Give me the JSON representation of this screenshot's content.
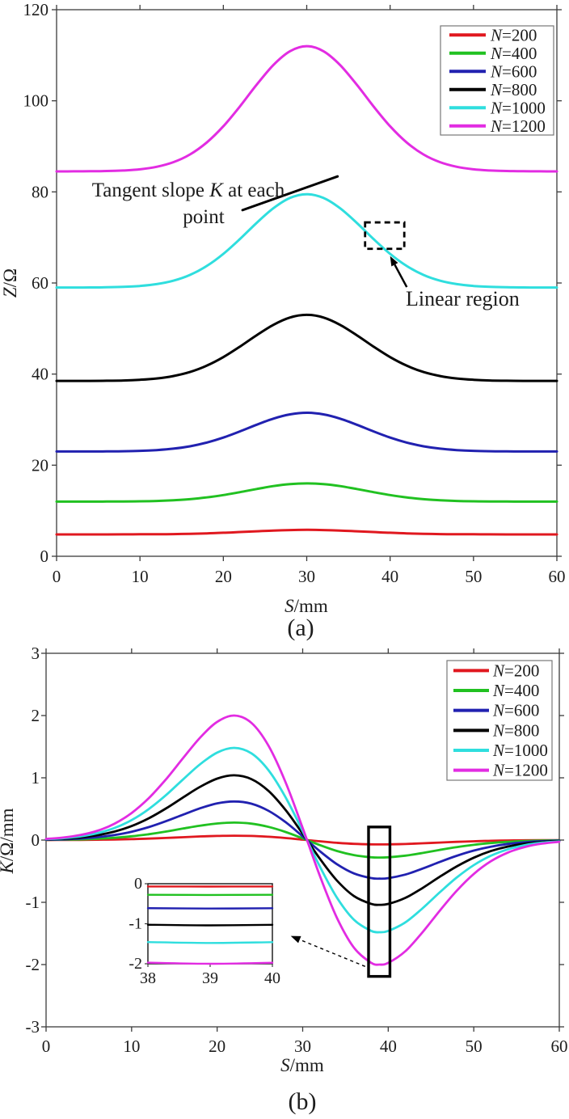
{
  "figure": {
    "caption_a": "(a)",
    "caption_b": "(b)"
  },
  "chart_data": [
    {
      "id": "a",
      "type": "line",
      "xlabel": "S/mm",
      "xlabel_var": "S",
      "xlabel_unit": "/mm",
      "ylabel": "Z/Ω",
      "ylabel_var": "Z",
      "ylabel_unit": "/Ω",
      "xlim": [
        0,
        60
      ],
      "ylim": [
        0,
        120
      ],
      "xticks": [
        0,
        10,
        20,
        30,
        40,
        50,
        60
      ],
      "yticks": [
        0,
        20,
        40,
        60,
        80,
        100,
        120
      ],
      "grid": false,
      "legend_position": "top-right",
      "x": [
        0,
        2,
        4,
        6,
        8,
        10,
        12,
        14,
        16,
        18,
        20,
        22,
        24,
        26,
        28,
        30,
        32,
        34,
        36,
        38,
        40,
        42,
        44,
        46,
        48,
        50,
        52,
        54,
        56,
        58,
        60
      ],
      "series": [
        {
          "name": "N=200",
          "color": "#e0181f",
          "values": [
            4.8,
            4.8,
            4.8,
            4.8,
            4.81,
            4.82,
            4.84,
            4.87,
            4.94,
            5.03,
            5.16,
            5.32,
            5.49,
            5.65,
            5.76,
            5.8,
            5.76,
            5.65,
            5.49,
            5.32,
            5.16,
            5.03,
            4.94,
            4.87,
            4.84,
            4.82,
            4.81,
            4.8,
            4.8,
            4.8,
            4.8
          ]
        },
        {
          "name": "N=400",
          "color": "#21c121",
          "values": [
            12.0,
            12.0,
            12.0,
            12.01,
            12.03,
            12.07,
            12.15,
            12.29,
            12.54,
            12.92,
            13.44,
            14.08,
            14.77,
            15.4,
            15.84,
            16.0,
            15.84,
            15.4,
            14.77,
            14.08,
            13.44,
            12.92,
            12.54,
            12.29,
            12.15,
            12.07,
            12.03,
            12.01,
            12.0,
            12.0,
            12.0
          ]
        },
        {
          "name": "N=600",
          "color": "#2121b0",
          "values": [
            23.0,
            23.0,
            23.01,
            23.02,
            23.06,
            23.14,
            23.31,
            23.62,
            24.15,
            24.96,
            26.06,
            27.42,
            28.89,
            30.22,
            31.16,
            31.5,
            31.16,
            30.22,
            28.89,
            27.42,
            26.06,
            24.96,
            24.15,
            23.62,
            23.31,
            23.14,
            23.06,
            23.02,
            23.01,
            23.0,
            23.0
          ]
        },
        {
          "name": "N=800",
          "color": "#000000",
          "values": [
            38.5,
            38.5,
            38.51,
            38.54,
            38.6,
            38.75,
            39.03,
            39.56,
            40.46,
            41.84,
            43.73,
            46.05,
            48.54,
            50.81,
            52.42,
            53.0,
            52.42,
            50.81,
            48.54,
            46.05,
            43.73,
            41.84,
            40.46,
            39.56,
            39.03,
            38.75,
            38.6,
            38.54,
            38.51,
            38.5,
            38.5
          ]
        },
        {
          "name": "N=1000",
          "color": "#2fdede",
          "values": [
            59.0,
            59.01,
            59.02,
            59.06,
            59.15,
            59.35,
            59.75,
            60.5,
            61.77,
            63.72,
            66.39,
            69.67,
            73.2,
            76.41,
            78.68,
            79.5,
            78.68,
            76.41,
            73.2,
            69.67,
            66.39,
            63.72,
            61.77,
            60.5,
            59.75,
            59.35,
            59.15,
            59.06,
            59.02,
            59.01,
            59.0
          ]
        },
        {
          "name": "N=1200",
          "color": "#e22ce2",
          "values": [
            84.5,
            84.51,
            84.53,
            84.58,
            84.7,
            84.96,
            85.51,
            86.52,
            88.22,
            90.83,
            94.41,
            98.81,
            103.55,
            107.85,
            110.9,
            112.0,
            110.9,
            107.85,
            103.55,
            98.81,
            94.41,
            90.83,
            88.22,
            86.52,
            85.51,
            84.96,
            84.7,
            84.58,
            84.53,
            84.51,
            84.5
          ]
        }
      ],
      "annotations": {
        "tangent_line1_pre": "Tangent slope ",
        "tangent_line1_var": "K",
        "tangent_line1_post": " at each",
        "tangent_line2": "point",
        "linear_label": "Linear region",
        "tangent_line": {
          "x1": 22.3,
          "y1": 76.0,
          "x2": 33.7,
          "y2": 83.4
        },
        "dashed_rect": {
          "x1": 37.0,
          "y1": 67.5,
          "x2": 41.7,
          "y2": 73.3
        },
        "arrow": {
          "tail": [
            42.0,
            59.1
          ],
          "tip": [
            40.0,
            65.9
          ]
        }
      }
    },
    {
      "id": "b",
      "type": "line",
      "xlabel": "S/mm",
      "xlabel_var": "S",
      "xlabel_unit": "/mm",
      "ylabel": "K/Ω/mm",
      "ylabel_var": "K",
      "ylabel_unit": "/Ω/mm",
      "xlim": [
        0,
        60
      ],
      "ylim": [
        -3,
        3
      ],
      "xticks": [
        0,
        10,
        20,
        30,
        40,
        50,
        60
      ],
      "yticks": [
        -3,
        -2,
        -1,
        0,
        1,
        2,
        3
      ],
      "grid": false,
      "legend_position": "top-right",
      "x": [
        0,
        2,
        4,
        6,
        8,
        10,
        12,
        14,
        16,
        18,
        20,
        22,
        24,
        26,
        28,
        30,
        32,
        34,
        36,
        38,
        39,
        40,
        42,
        44,
        46,
        48,
        50,
        52,
        54,
        56,
        58,
        60
      ],
      "series": [
        {
          "name": "N=200",
          "color": "#e0181f",
          "values": [
            0.001,
            0.001,
            0.003,
            0.005,
            0.009,
            0.015,
            0.024,
            0.034,
            0.046,
            0.058,
            0.066,
            0.07,
            0.066,
            0.053,
            0.033,
            0.007,
            -0.02,
            -0.044,
            -0.061,
            -0.069,
            -0.07,
            -0.069,
            -0.063,
            -0.052,
            -0.04,
            -0.029,
            -0.019,
            -0.012,
            -0.007,
            -0.004,
            -0.002,
            -0.001
          ]
        },
        {
          "name": "N=400",
          "color": "#21c121",
          "values": [
            0.003,
            0.006,
            0.011,
            0.021,
            0.037,
            0.061,
            0.094,
            0.136,
            0.184,
            0.23,
            0.266,
            0.28,
            0.264,
            0.212,
            0.13,
            0.027,
            -0.08,
            -0.175,
            -0.242,
            -0.276,
            -0.28,
            -0.276,
            -0.25,
            -0.208,
            -0.159,
            -0.114,
            -0.076,
            -0.048,
            -0.028,
            -0.015,
            -0.008,
            -0.004
          ]
        },
        {
          "name": "N=600",
          "color": "#2121b0",
          "values": [
            0.006,
            0.012,
            0.025,
            0.046,
            0.081,
            0.134,
            0.208,
            0.302,
            0.407,
            0.51,
            0.589,
            0.62,
            0.584,
            0.47,
            0.288,
            0.06,
            -0.178,
            -0.387,
            -0.536,
            -0.611,
            -0.62,
            -0.612,
            -0.554,
            -0.459,
            -0.353,
            -0.253,
            -0.169,
            -0.106,
            -0.062,
            -0.034,
            -0.018,
            -0.009
          ]
        },
        {
          "name": "N=800",
          "color": "#000000",
          "values": [
            0.01,
            0.021,
            0.041,
            0.078,
            0.137,
            0.225,
            0.349,
            0.506,
            0.683,
            0.855,
            0.987,
            1.04,
            0.979,
            0.789,
            0.483,
            0.101,
            -0.298,
            -0.649,
            -0.9,
            -1.025,
            -1.04,
            -1.026,
            -0.929,
            -0.771,
            -0.592,
            -0.424,
            -0.283,
            -0.177,
            -0.104,
            -0.057,
            -0.03,
            -0.014
          ]
        },
        {
          "name": "N=1000",
          "color": "#2fdede",
          "values": [
            0.014,
            0.03,
            0.059,
            0.111,
            0.194,
            0.321,
            0.497,
            0.72,
            0.972,
            1.217,
            1.405,
            1.48,
            1.393,
            1.122,
            0.687,
            0.143,
            -0.424,
            -0.923,
            -1.28,
            -1.459,
            -1.48,
            -1.46,
            -1.322,
            -1.097,
            -0.843,
            -0.603,
            -0.403,
            -0.252,
            -0.148,
            -0.081,
            -0.042,
            -0.021
          ]
        },
        {
          "name": "N=1200",
          "color": "#e22ce2",
          "values": [
            0.019,
            0.04,
            0.08,
            0.149,
            0.263,
            0.434,
            0.672,
            0.973,
            1.313,
            1.644,
            1.899,
            2.0,
            1.883,
            1.516,
            0.929,
            0.194,
            -0.573,
            -1.248,
            -1.73,
            -1.971,
            -2.0,
            -1.973,
            -1.786,
            -1.482,
            -1.139,
            -0.815,
            -0.544,
            -0.34,
            -0.2,
            -0.11,
            -0.057,
            -0.028
          ]
        }
      ],
      "annotations": {
        "rect": {
          "x1": 37.7,
          "y1": -2.19,
          "x2": 40.2,
          "y2": 0.21
        },
        "dashed_arrow": {
          "tail": [
            37.3,
            -2.03
          ],
          "tip": [
            28.6,
            -1.54
          ]
        }
      },
      "inset": {
        "xlim": [
          38,
          40
        ],
        "ylim": [
          -2,
          0
        ],
        "xticks": [
          38,
          39,
          40
        ],
        "yticks": [
          0,
          -1,
          -2
        ],
        "x": [
          38,
          39,
          40
        ],
        "series": [
          {
            "name": "N=200",
            "color": "#e0181f",
            "values": [
              -0.069,
              -0.07,
              -0.069
            ]
          },
          {
            "name": "N=400",
            "color": "#21c121",
            "values": [
              -0.276,
              -0.28,
              -0.276
            ]
          },
          {
            "name": "N=600",
            "color": "#2121b0",
            "values": [
              -0.611,
              -0.62,
              -0.612
            ]
          },
          {
            "name": "N=800",
            "color": "#000000",
            "values": [
              -1.025,
              -1.04,
              -1.026
            ]
          },
          {
            "name": "N=1000",
            "color": "#2fdede",
            "values": [
              -1.459,
              -1.48,
              -1.46
            ]
          },
          {
            "name": "N=1200",
            "color": "#e22ce2",
            "values": [
              -1.971,
              -2.0,
              -1.973
            ]
          }
        ]
      }
    }
  ]
}
